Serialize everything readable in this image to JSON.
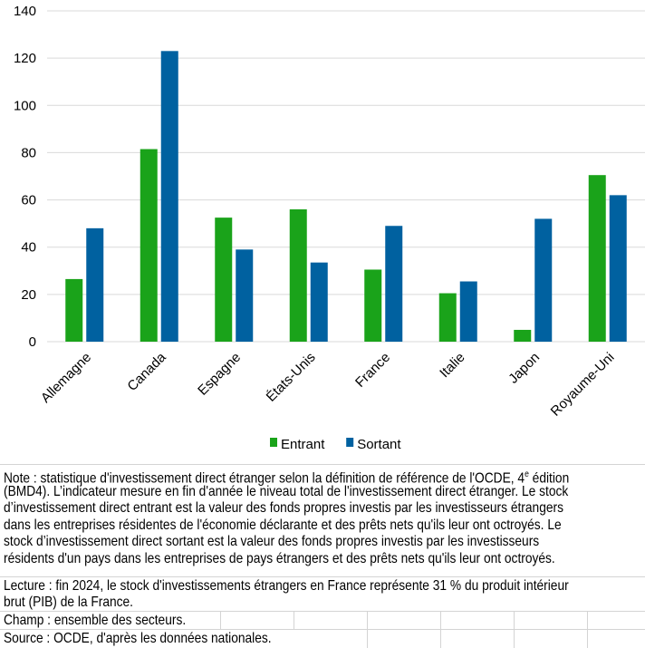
{
  "chart_data": {
    "type": "bar",
    "categories": [
      "Allemagne",
      "Canada",
      "Espagne",
      "États-Unis",
      "France",
      "Italie",
      "Japon",
      "Royaume-Uni"
    ],
    "series": [
      {
        "name": "Entrant",
        "color": "#1aa31a",
        "values": [
          26.5,
          81.5,
          52.5,
          56,
          30.5,
          20.5,
          5,
          70.5
        ]
      },
      {
        "name": "Sortant",
        "color": "#0061a0",
        "values": [
          48,
          123,
          39,
          33.5,
          49,
          25.5,
          52,
          62
        ]
      }
    ],
    "ylim": [
      0,
      140
    ],
    "yticks": [
      0,
      20,
      40,
      60,
      80,
      100,
      120,
      140
    ],
    "grid": true,
    "legend": "bottom"
  },
  "notes": {
    "note_lines": [
      "Note : statistique d'investissement direct étranger selon la définition de référence de l'OCDE, 4",
      "(BMD4). L’indicateur mesure en fin d'année le niveau total de l'investissement direct étranger. Le stock",
      "d’investissement direct entrant est la valeur des fonds propres investis par les investisseurs étrangers",
      "dans les entreprises résidentes de l'économie déclarante et des prêts nets qu'ils leur ont octroyés. Le",
      "stock d’investissement direct sortant est la valeur des fonds propres investis par les investisseurs",
      "résidents d'un pays dans les entreprises de pays étrangers et des prêts nets qu'ils leur ont octroyés."
    ],
    "note_sup": "e",
    "note_tail": " édition",
    "lecture_lines": [
      "Lecture : fin 2024, le stock d'investissements étrangers en France représente 31 % du produit intérieur",
      "brut (PIB) de la France."
    ],
    "champ": "Champ : ensemble des secteurs.",
    "source": "Source : OCDE, d'après les données nationales."
  }
}
